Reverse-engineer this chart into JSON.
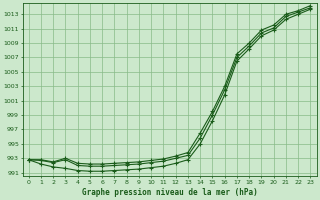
{
  "title": "Graphe pression niveau de la mer (hPa)",
  "bg_color": "#cce8cc",
  "grid_color": "#88bb88",
  "line_color": "#1a5c1a",
  "marker_color": "#1a5c1a",
  "xlim": [
    -0.5,
    23.5
  ],
  "ylim": [
    990.5,
    1014.5
  ],
  "yticks": [
    991,
    993,
    995,
    997,
    999,
    1001,
    1003,
    1005,
    1007,
    1009,
    1011,
    1013
  ],
  "xticks": [
    0,
    1,
    2,
    3,
    4,
    5,
    6,
    7,
    8,
    9,
    10,
    11,
    12,
    13,
    14,
    15,
    16,
    17,
    18,
    19,
    20,
    21,
    22,
    23
  ],
  "x": [
    0,
    1,
    2,
    3,
    4,
    5,
    6,
    7,
    8,
    9,
    10,
    11,
    12,
    13,
    14,
    15,
    16,
    17,
    18,
    19,
    20,
    21,
    22,
    23
  ],
  "line1": [
    992.8,
    992.8,
    992.5,
    993.0,
    992.3,
    992.2,
    992.2,
    992.3,
    992.4,
    992.5,
    992.7,
    992.9,
    993.3,
    993.8,
    996.5,
    999.5,
    1003.0,
    1007.5,
    1009.0,
    1010.8,
    1011.5,
    1013.0,
    1013.5,
    1014.2
  ],
  "line2": [
    992.8,
    992.7,
    992.4,
    992.8,
    992.0,
    991.9,
    991.9,
    992.0,
    992.1,
    992.2,
    992.4,
    992.6,
    993.0,
    993.4,
    995.8,
    999.0,
    1002.5,
    1007.0,
    1008.6,
    1010.4,
    1011.1,
    1012.7,
    1013.3,
    1013.9
  ],
  "line3": [
    992.8,
    992.2,
    991.8,
    991.6,
    991.3,
    991.2,
    991.2,
    991.3,
    991.4,
    991.5,
    991.7,
    991.9,
    992.3,
    992.8,
    995.0,
    998.2,
    1001.8,
    1006.5,
    1008.2,
    1010.0,
    1010.8,
    1012.3,
    1013.0,
    1013.7
  ]
}
